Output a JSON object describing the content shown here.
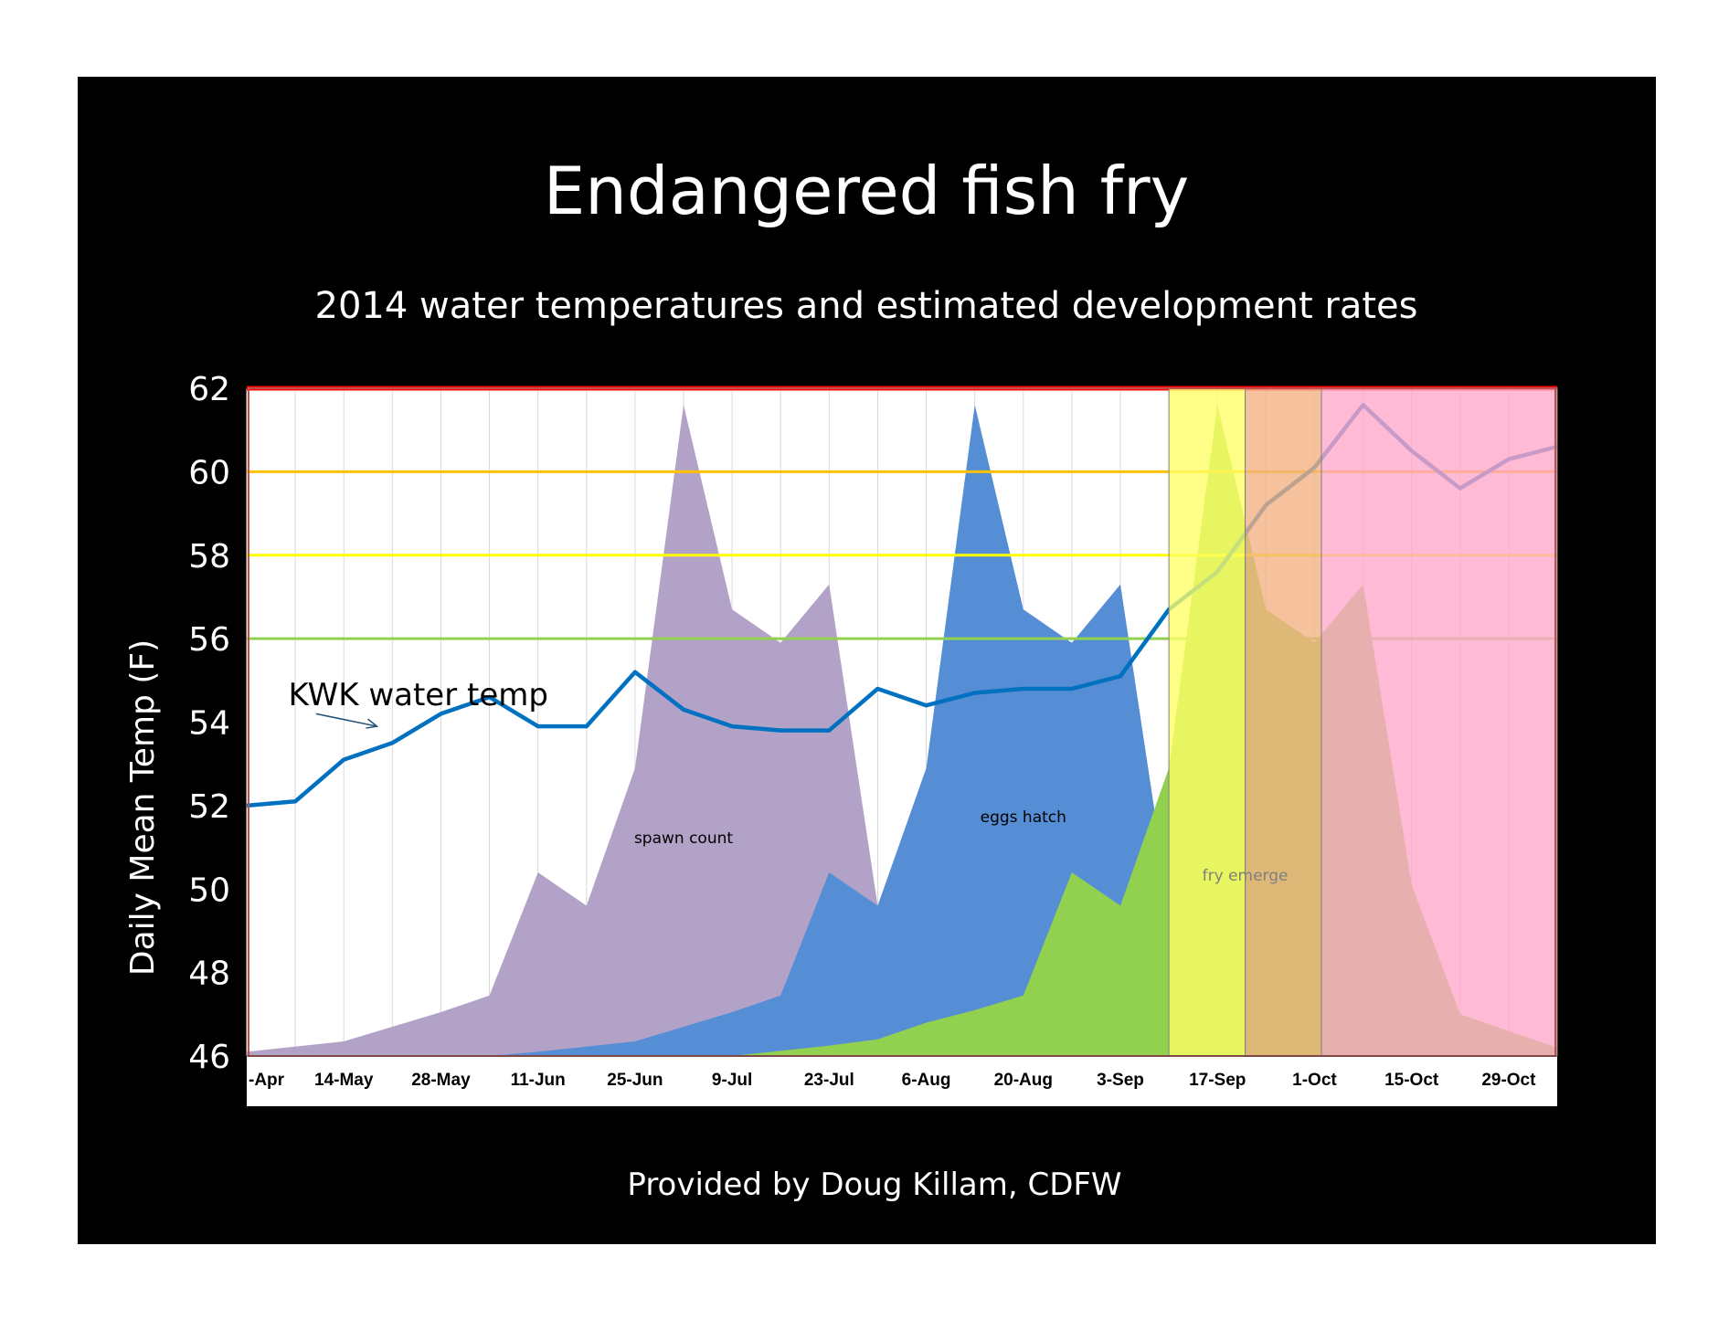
{
  "chart_data": {
    "type": "area",
    "title": "Endangered fish fry",
    "subtitle": "2014 water temperatures and estimated development rates",
    "ylabel": "Daily Mean Temp (F)",
    "xlabel": "",
    "footer": "Provided by Doug Killam, CDFW",
    "ylim": [
      46,
      62
    ],
    "yticks": [
      46,
      48,
      50,
      52,
      54,
      56,
      58,
      60,
      62
    ],
    "x_start": "2014-04-30",
    "x_end": "2014-11-05",
    "xtick_dates": [
      "2014-04-30",
      "2014-05-14",
      "2014-05-28",
      "2014-06-11",
      "2014-06-25",
      "2014-07-09",
      "2014-07-23",
      "2014-08-06",
      "2014-08-20",
      "2014-09-03",
      "2014-09-17",
      "2014-10-01",
      "2014-10-15",
      "2014-10-29"
    ],
    "xtick_labels": [
      "-Apr",
      "14-May",
      "28-May",
      "11-Jun",
      "25-Jun",
      "9-Jul",
      "23-Jul",
      "6-Aug",
      "20-Aug",
      "3-Sep",
      "17-Sep",
      "1-Oct",
      "15-Oct",
      "29-Oct"
    ],
    "grid": true,
    "reference_lines": [
      {
        "y": 56,
        "color": "#92d050"
      },
      {
        "y": 58,
        "color": "#ffff00"
      },
      {
        "y": 60,
        "color": "#ffc000"
      },
      {
        "y": 62,
        "color": "#ff0000"
      }
    ],
    "shaded_bands": [
      {
        "from": "2014-09-10",
        "to": "2014-09-21",
        "color": "#ffff66"
      },
      {
        "from": "2014-09-21",
        "to": "2014-10-02",
        "color": "#f4b183"
      },
      {
        "from": "2014-10-02",
        "to": "2014-11-05",
        "color": "#ffa6c9"
      }
    ],
    "series": [
      {
        "name": "spawn count",
        "kind": "area",
        "color": "#b3a2c7",
        "dates": [
          "2014-04-30",
          "2014-05-14",
          "2014-05-21",
          "2014-05-28",
          "2014-06-04",
          "2014-06-11",
          "2014-06-18",
          "2014-06-25",
          "2014-07-02",
          "2014-07-09",
          "2014-07-16",
          "2014-07-23",
          "2014-07-30",
          "2014-08-06"
        ],
        "values": [
          46.1,
          46.35,
          46.7,
          47.05,
          47.45,
          50.4,
          49.6,
          52.9,
          61.6,
          56.7,
          55.9,
          57.3,
          49.6,
          46.0
        ]
      },
      {
        "name": "eggs hatch",
        "kind": "area",
        "color": "#558ed5",
        "dates": [
          "2014-06-04",
          "2014-06-11",
          "2014-06-25",
          "2014-07-02",
          "2014-07-09",
          "2014-07-16",
          "2014-07-23",
          "2014-07-30",
          "2014-08-06",
          "2014-08-13",
          "2014-08-20",
          "2014-08-27",
          "2014-09-03",
          "2014-09-10",
          "2014-09-17"
        ],
        "values": [
          46.0,
          46.1,
          46.35,
          46.7,
          47.05,
          47.45,
          50.4,
          49.6,
          52.9,
          61.6,
          56.7,
          55.9,
          57.3,
          49.6,
          46.0
        ]
      },
      {
        "name": "fry emerge",
        "kind": "area",
        "color": "#92d050",
        "dates": [
          "2014-07-09",
          "2014-07-23",
          "2014-07-30",
          "2014-08-06",
          "2014-08-13",
          "2014-08-20",
          "2014-08-27",
          "2014-09-03",
          "2014-09-10",
          "2014-09-17",
          "2014-09-24",
          "2014-10-01",
          "2014-10-08",
          "2014-10-15",
          "2014-10-22",
          "2014-10-29",
          "2014-11-05"
        ],
        "values": [
          46.0,
          46.25,
          46.4,
          46.8,
          47.1,
          47.45,
          50.4,
          49.6,
          52.9,
          61.6,
          56.7,
          55.9,
          57.3,
          50.1,
          47.0,
          46.6,
          46.2
        ]
      },
      {
        "name": "KWK water temp",
        "kind": "line",
        "color": "#0070c0",
        "dates": [
          "2014-04-30",
          "2014-05-07",
          "2014-05-14",
          "2014-05-21",
          "2014-05-28",
          "2014-06-04",
          "2014-06-11",
          "2014-06-18",
          "2014-06-25",
          "2014-07-02",
          "2014-07-09",
          "2014-07-16",
          "2014-07-23",
          "2014-07-30",
          "2014-08-06",
          "2014-08-13",
          "2014-08-20",
          "2014-08-27",
          "2014-09-03",
          "2014-09-10",
          "2014-09-17",
          "2014-09-24",
          "2014-10-01",
          "2014-10-08",
          "2014-10-15",
          "2014-10-22",
          "2014-10-29",
          "2014-11-05"
        ],
        "values": [
          52.0,
          52.1,
          53.1,
          53.5,
          54.2,
          54.6,
          53.9,
          53.9,
          55.2,
          54.3,
          53.9,
          53.8,
          53.8,
          54.8,
          54.4,
          54.7,
          54.8,
          54.8,
          55.1,
          56.7,
          57.6,
          59.2,
          60.1,
          61.6,
          60.5,
          59.6,
          60.3,
          60.6
        ]
      }
    ],
    "annotations": [
      {
        "text": "KWK water temp",
        "date": "2014-05-06",
        "value": 54.4,
        "color": "#000000"
      },
      {
        "text": "spawn count",
        "date": "2014-07-02",
        "value": 51.1,
        "color": "#000000"
      },
      {
        "text": "eggs hatch",
        "date": "2014-08-20",
        "value": 51.6,
        "color": "#000000"
      },
      {
        "text": "fry emerge",
        "date": "2014-09-21",
        "value": 50.2,
        "color": "#7f7f7f"
      }
    ]
  }
}
